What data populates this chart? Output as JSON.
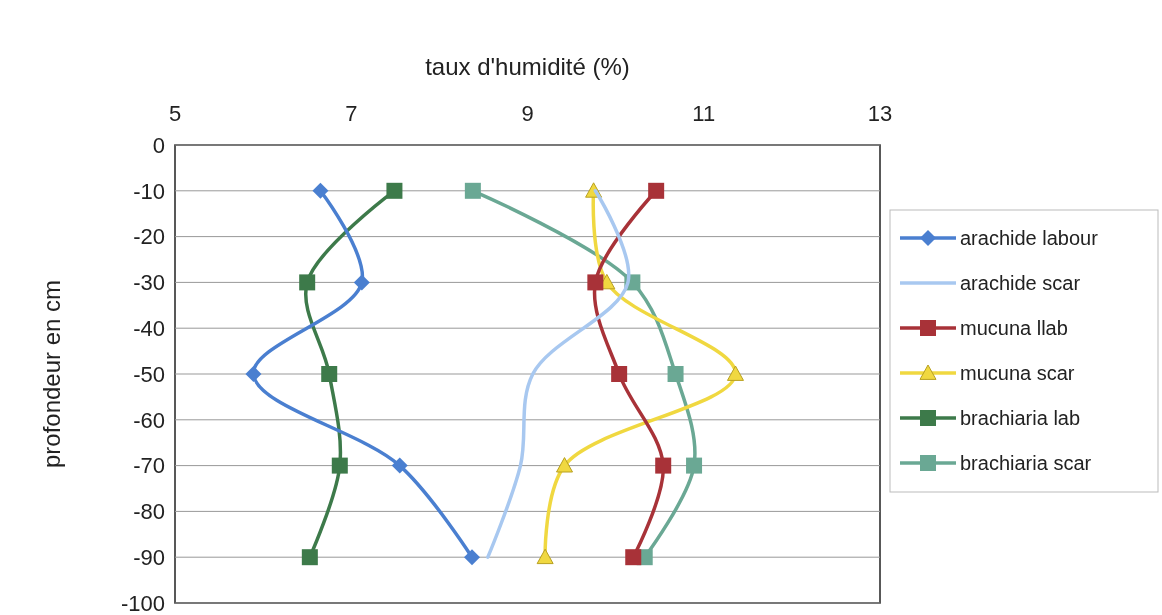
{
  "chart_data": {
    "type": "line",
    "xlabel": "taux d'humidité (%)",
    "ylabel": "profondeur en cm",
    "xlim": [
      5,
      13
    ],
    "xticks": [
      5,
      7,
      9,
      11,
      13
    ],
    "ylim": [
      -100,
      0
    ],
    "yticks": [
      0,
      -10,
      -20,
      -30,
      -40,
      -50,
      -60,
      -70,
      -80,
      -90,
      -100
    ],
    "grid": "y",
    "legend": "right",
    "series": [
      {
        "name": "arachide labour",
        "color": "#4a7fd0",
        "marker": "diamond",
        "x": [
          6.65,
          7.12,
          5.89,
          7.55,
          8.37
        ],
        "values": [
          -10,
          -30,
          -50,
          -70,
          -90
        ]
      },
      {
        "name": "arachide scar",
        "color": "#a8c8f0",
        "marker": "none",
        "x": [
          9.77,
          10.14,
          9.06,
          8.92,
          8.55
        ],
        "values": [
          -10,
          -30,
          -50,
          -70,
          -90
        ]
      },
      {
        "name": "mucuna llab",
        "color": "#a83238",
        "marker": "square",
        "x": [
          10.46,
          9.77,
          10.04,
          10.54,
          10.2
        ],
        "values": [
          -10,
          -30,
          -50,
          -70,
          -90
        ]
      },
      {
        "name": "mucuna scar",
        "color": "#f0d840",
        "marker": "triangle",
        "x": [
          9.75,
          9.9,
          11.36,
          9.42,
          9.2
        ],
        "values": [
          -10,
          -30,
          -50,
          -70,
          -90
        ]
      },
      {
        "name": "brachiaria lab",
        "color": "#3d7a4a",
        "marker": "square",
        "x": [
          7.49,
          6.5,
          6.75,
          6.87,
          6.53
        ],
        "values": [
          -10,
          -30,
          -50,
          -70,
          -90
        ]
      },
      {
        "name": "brachiaria scar",
        "color": "#6aa894",
        "marker": "square",
        "x": [
          8.38,
          10.19,
          10.68,
          10.89,
          10.33
        ],
        "values": [
          -10,
          -30,
          -50,
          -70,
          -90
        ]
      }
    ]
  }
}
